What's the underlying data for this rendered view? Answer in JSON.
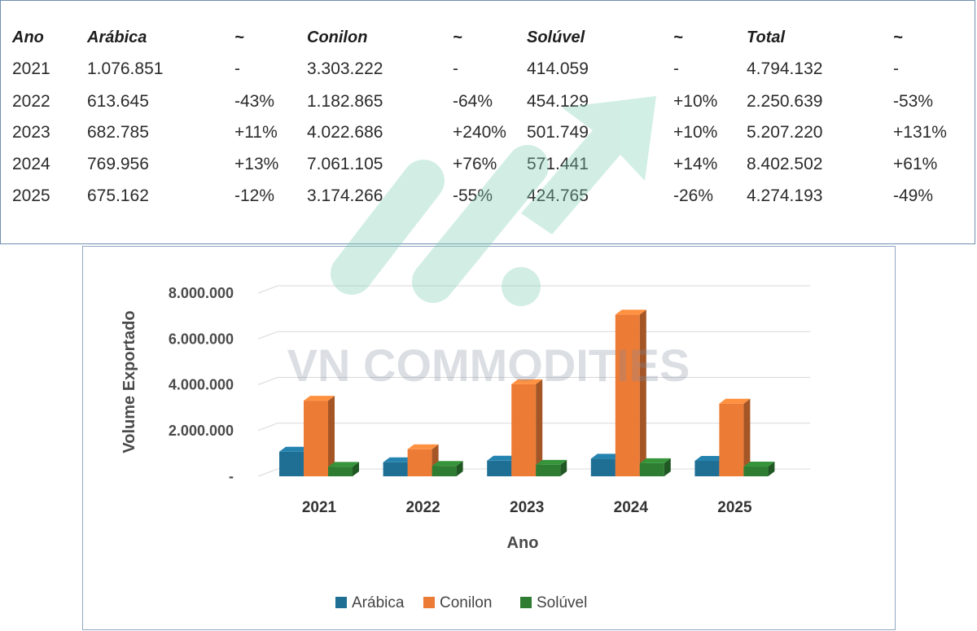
{
  "table": {
    "headers": [
      "Ano",
      "Arábica",
      "~",
      "Conilon",
      "~",
      "Solúvel",
      "~",
      "Total",
      "~"
    ],
    "rows": [
      [
        "2021",
        "1.076.851",
        "-",
        "3.303.222",
        "-",
        "414.059",
        "-",
        "4.794.132",
        "-"
      ],
      [
        "2022",
        "613.645",
        "-43%",
        "1.182.865",
        "-64%",
        "454.129",
        "+10%",
        "2.250.639",
        "-53%"
      ],
      [
        "2023",
        "682.785",
        "+11%",
        "4.022.686",
        "+240%",
        "501.749",
        "+10%",
        "5.207.220",
        "+131%"
      ],
      [
        "2024",
        "769.956",
        "+13%",
        "7.061.105",
        "+76%",
        "571.441",
        "+14%",
        "8.402.502",
        "+61%"
      ],
      [
        "2025",
        "675.162",
        "-12%",
        "3.174.266",
        "-55%",
        "424.765",
        "-26%",
        "4.274.193",
        "-49%"
      ]
    ]
  },
  "watermark": {
    "text": "VN COMMODITIES"
  },
  "chart_data": {
    "type": "bar",
    "categories": [
      "2021",
      "2022",
      "2023",
      "2024",
      "2025"
    ],
    "series": [
      {
        "name": "Arábica",
        "values": [
          1076851,
          613645,
          682785,
          769956,
          675162
        ],
        "color": "#1f6f95"
      },
      {
        "name": "Conilon",
        "values": [
          3303222,
          1182865,
          4022686,
          7061105,
          3174266
        ],
        "color": "#ec7b36"
      },
      {
        "name": "Solúvel",
        "values": [
          414059,
          454129,
          501749,
          571441,
          424765
        ],
        "color": "#2e7d32"
      }
    ],
    "ylim": [
      0,
      8000000
    ],
    "yticks": [
      "-",
      "2.000.000",
      "4.000.000",
      "6.000.000",
      "8.000.000"
    ],
    "xlabel": "Ano",
    "ylabel": "Volume Exportado",
    "legend": "bottom",
    "grid": true
  }
}
